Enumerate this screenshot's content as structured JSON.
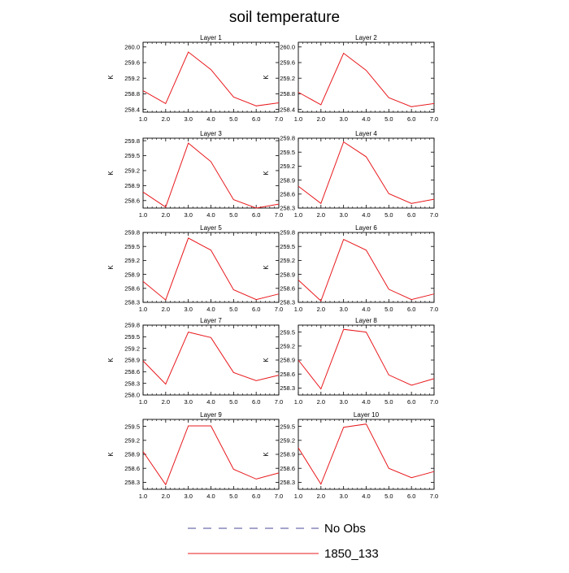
{
  "title": "soil temperature",
  "legend": [
    {
      "label": "No Obs",
      "color": "#4a4a9a",
      "dash": true
    },
    {
      "label": "1850_133",
      "color": "#e8181c",
      "dash": false
    }
  ],
  "chart_data": [
    {
      "type": "line",
      "title": "Layer 1",
      "ylabel": "K",
      "xlim": [
        1.0,
        7.0
      ],
      "ylim": [
        258.33,
        260.12
      ],
      "yticks": [
        "258.4",
        "258.8",
        "259.2",
        "259.6",
        "260.0"
      ],
      "xticks": [
        "1.0",
        "2.0",
        "3.0",
        "4.0",
        "5.0",
        "6.0",
        "7.0"
      ],
      "series": [
        {
          "name": "1850_133",
          "color": "#e8181c",
          "x": [
            1,
            2,
            3,
            4,
            5,
            6,
            7
          ],
          "y": [
            258.88,
            258.55,
            259.87,
            259.42,
            258.72,
            258.49,
            258.57
          ]
        }
      ]
    },
    {
      "type": "line",
      "title": "Layer 2",
      "ylabel": "K",
      "xlim": [
        1.0,
        7.0
      ],
      "ylim": [
        258.33,
        260.12
      ],
      "yticks": [
        "258.4",
        "258.8",
        "259.2",
        "259.6",
        "260.0"
      ],
      "xticks": [
        "1.0",
        "2.0",
        "3.0",
        "4.0",
        "5.0",
        "6.0",
        "7.0"
      ],
      "series": [
        {
          "name": "1850_133",
          "color": "#e8181c",
          "x": [
            1,
            2,
            3,
            4,
            5,
            6,
            7
          ],
          "y": [
            258.84,
            258.52,
            259.84,
            259.4,
            258.7,
            258.47,
            258.55
          ]
        }
      ]
    },
    {
      "type": "line",
      "title": "Layer 3",
      "ylabel": "K",
      "xlim": [
        1.0,
        7.0
      ],
      "ylim": [
        258.45,
        259.85
      ],
      "yticks": [
        "258.6",
        "258.9",
        "259.2",
        "259.5",
        "259.8"
      ],
      "xticks": [
        "1.0",
        "2.0",
        "3.0",
        "4.0",
        "5.0",
        "6.0",
        "7.0"
      ],
      "series": [
        {
          "name": "1850_133",
          "color": "#e8181c",
          "x": [
            1,
            2,
            3,
            4,
            5,
            6,
            7
          ],
          "y": [
            258.77,
            258.47,
            259.75,
            259.38,
            258.62,
            258.45,
            258.53
          ]
        }
      ]
    },
    {
      "type": "line",
      "title": "Layer 4",
      "ylabel": "K",
      "xlim": [
        1.0,
        7.0
      ],
      "ylim": [
        258.3,
        259.8
      ],
      "yticks": [
        "258.3",
        "258.6",
        "258.9",
        "259.2",
        "259.5",
        "259.8"
      ],
      "xticks": [
        "1.0",
        "2.0",
        "3.0",
        "4.0",
        "5.0",
        "6.0",
        "7.0"
      ],
      "series": [
        {
          "name": "1850_133",
          "color": "#e8181c",
          "x": [
            1,
            2,
            3,
            4,
            5,
            6,
            7
          ],
          "y": [
            258.77,
            258.4,
            259.72,
            259.4,
            258.61,
            258.4,
            258.49
          ]
        }
      ]
    },
    {
      "type": "line",
      "title": "Layer 5",
      "ylabel": "K",
      "xlim": [
        1.0,
        7.0
      ],
      "ylim": [
        258.3,
        259.8
      ],
      "yticks": [
        "258.3",
        "258.6",
        "258.9",
        "259.2",
        "259.5",
        "259.8"
      ],
      "xticks": [
        "1.0",
        "2.0",
        "3.0",
        "4.0",
        "5.0",
        "6.0",
        "7.0"
      ],
      "series": [
        {
          "name": "1850_133",
          "color": "#e8181c",
          "x": [
            1,
            2,
            3,
            4,
            5,
            6,
            7
          ],
          "y": [
            258.75,
            258.35,
            259.68,
            259.42,
            258.57,
            258.36,
            258.48
          ]
        }
      ]
    },
    {
      "type": "line",
      "title": "Layer 6",
      "ylabel": "K",
      "xlim": [
        1.0,
        7.0
      ],
      "ylim": [
        258.3,
        259.8
      ],
      "yticks": [
        "258.3",
        "258.6",
        "258.9",
        "259.2",
        "259.5",
        "259.8"
      ],
      "xticks": [
        "1.0",
        "2.0",
        "3.0",
        "4.0",
        "5.0",
        "6.0",
        "7.0"
      ],
      "series": [
        {
          "name": "1850_133",
          "color": "#e8181c",
          "x": [
            1,
            2,
            3,
            4,
            5,
            6,
            7
          ],
          "y": [
            258.78,
            258.33,
            259.65,
            259.42,
            258.58,
            258.36,
            258.48
          ]
        }
      ]
    },
    {
      "type": "line",
      "title": "Layer 7",
      "ylabel": "K",
      "xlim": [
        1.0,
        7.0
      ],
      "ylim": [
        258.0,
        259.8
      ],
      "yticks": [
        "258.0",
        "258.3",
        "258.6",
        "258.9",
        "259.2",
        "259.5",
        "259.8"
      ],
      "xticks": [
        "1.0",
        "2.0",
        "3.0",
        "4.0",
        "5.0",
        "6.0",
        "7.0"
      ],
      "series": [
        {
          "name": "1850_133",
          "color": "#e8181c",
          "x": [
            1,
            2,
            3,
            4,
            5,
            6,
            7
          ],
          "y": [
            258.88,
            258.28,
            259.62,
            259.48,
            258.58,
            258.37,
            258.51
          ]
        }
      ]
    },
    {
      "type": "line",
      "title": "Layer 8",
      "ylabel": "K",
      "xlim": [
        1.0,
        7.0
      ],
      "ylim": [
        258.15,
        259.65
      ],
      "yticks": [
        "258.3",
        "258.6",
        "258.9",
        "259.2",
        "259.5"
      ],
      "xticks": [
        "1.0",
        "2.0",
        "3.0",
        "4.0",
        "5.0",
        "6.0",
        "7.0"
      ],
      "series": [
        {
          "name": "1850_133",
          "color": "#e8181c",
          "x": [
            1,
            2,
            3,
            4,
            5,
            6,
            7
          ],
          "y": [
            258.9,
            258.28,
            259.56,
            259.5,
            258.58,
            258.36,
            258.5
          ]
        }
      ]
    },
    {
      "type": "line",
      "title": "Layer 9",
      "ylabel": "K",
      "xlim": [
        1.0,
        7.0
      ],
      "ylim": [
        258.15,
        259.65
      ],
      "yticks": [
        "258.3",
        "258.6",
        "258.9",
        "259.2",
        "259.5"
      ],
      "xticks": [
        "1.0",
        "2.0",
        "3.0",
        "4.0",
        "5.0",
        "6.0",
        "7.0"
      ],
      "series": [
        {
          "name": "1850_133",
          "color": "#e8181c",
          "x": [
            1,
            2,
            3,
            4,
            5,
            6,
            7
          ],
          "y": [
            258.96,
            258.25,
            259.51,
            259.51,
            258.58,
            258.37,
            258.5
          ]
        }
      ]
    },
    {
      "type": "line",
      "title": "Layer 10",
      "ylabel": "K",
      "xlim": [
        1.0,
        7.0
      ],
      "ylim": [
        258.15,
        259.65
      ],
      "yticks": [
        "258.3",
        "258.6",
        "258.9",
        "259.2",
        "259.5"
      ],
      "xticks": [
        "1.0",
        "2.0",
        "3.0",
        "4.0",
        "5.0",
        "6.0",
        "7.0"
      ],
      "series": [
        {
          "name": "1850_133",
          "color": "#e8181c",
          "x": [
            1,
            2,
            3,
            4,
            5,
            6,
            7
          ],
          "y": [
            259.04,
            258.26,
            259.48,
            259.55,
            258.6,
            258.4,
            258.53
          ]
        }
      ]
    }
  ]
}
